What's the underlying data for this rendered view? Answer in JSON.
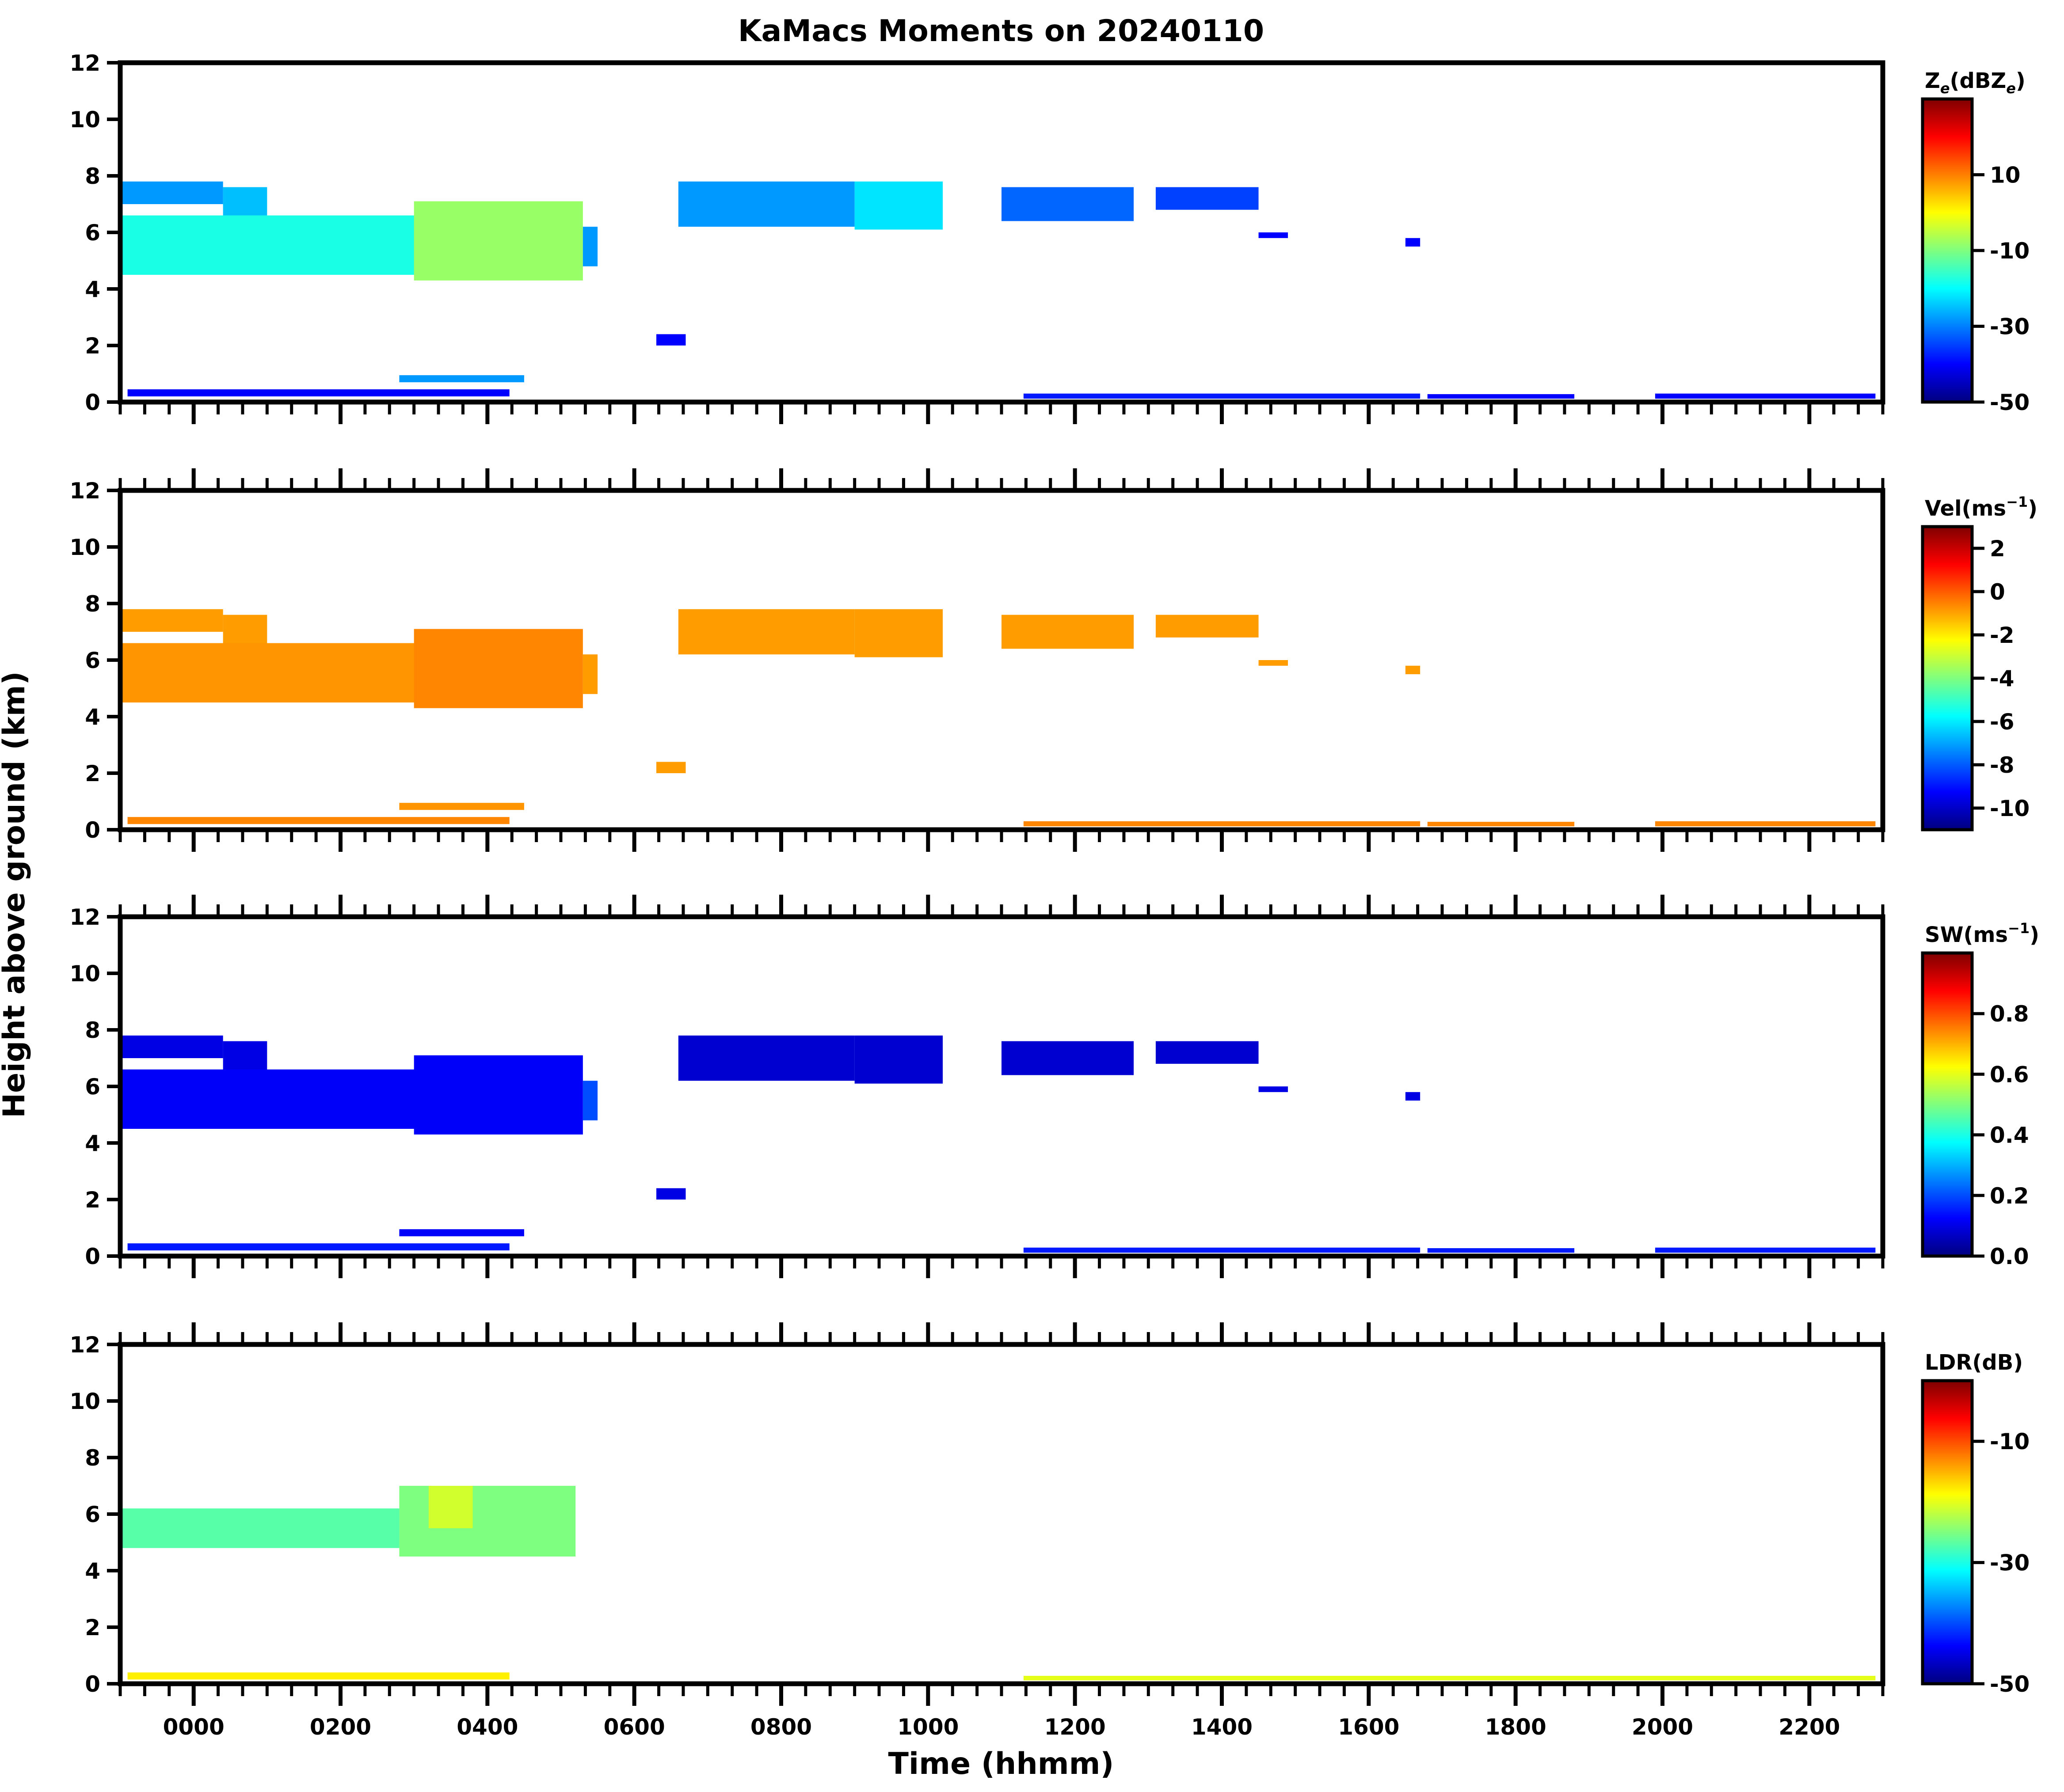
{
  "chart_data": {
    "type": "heatmap",
    "title": "KaMacs Moments on 20240110",
    "xlabel": "Time (hhmm)",
    "ylabel": "Height above ground (km)",
    "x_unit": "hours",
    "xlim": [
      -1.0,
      23.0
    ],
    "xticks": [
      0,
      2,
      4,
      6,
      8,
      10,
      12,
      14,
      16,
      18,
      20,
      22
    ],
    "xtick_labels": [
      "0000",
      "0200",
      "0400",
      "0600",
      "0800",
      "1000",
      "1200",
      "1400",
      "1600",
      "1800",
      "2000",
      "2200"
    ],
    "ylim": [
      0,
      12
    ],
    "yticks": [
      0,
      2,
      4,
      6,
      8,
      10,
      12
    ],
    "ytick_labels": [
      "0",
      "2",
      "4",
      "6",
      "8",
      "10",
      "12"
    ],
    "grid": false,
    "colormap": "jet",
    "colormap_stops": [
      "#00007f",
      "#0000ff",
      "#007fff",
      "#00ffff",
      "#7fff7f",
      "#ffff00",
      "#ff7f00",
      "#ff0000",
      "#7f0000"
    ],
    "panels": [
      {
        "name": "Z",
        "colorbar": {
          "label_main": "Z",
          "label_sub": "e",
          "label_rest": "(dBZ",
          "label_sub2": "e",
          "label_end": ")",
          "range": [
            -50,
            30
          ],
          "ticks": [
            10,
            -10,
            -30,
            -50
          ],
          "tick_labels": [
            "10",
            "-10",
            "-30",
            "-50"
          ]
        },
        "echoes": [
          {
            "t0": -1.0,
            "t1": 0.4,
            "hb": 7.0,
            "ht": 7.8,
            "v": -28
          },
          {
            "t0": 0.4,
            "t1": 1.0,
            "hb": 6.2,
            "ht": 7.6,
            "v": -25
          },
          {
            "t0": -1.0,
            "t1": 5.2,
            "hb": 4.5,
            "ht": 6.6,
            "v": -18
          },
          {
            "t0": 3.0,
            "t1": 5.3,
            "hb": 4.3,
            "ht": 7.1,
            "v": -8
          },
          {
            "t0": 5.3,
            "t1": 5.5,
            "hb": 4.8,
            "ht": 6.2,
            "v": -28
          },
          {
            "t0": 6.3,
            "t1": 6.7,
            "hb": 2.0,
            "ht": 2.4,
            "v": -40
          },
          {
            "t0": 6.6,
            "t1": 9.0,
            "hb": 6.2,
            "ht": 7.8,
            "v": -28
          },
          {
            "t0": 9.0,
            "t1": 10.2,
            "hb": 6.1,
            "ht": 7.8,
            "v": -22
          },
          {
            "t0": 11.0,
            "t1": 12.8,
            "hb": 6.4,
            "ht": 7.6,
            "v": -32
          },
          {
            "t0": 13.1,
            "t1": 14.5,
            "hb": 6.8,
            "ht": 7.6,
            "v": -35
          },
          {
            "t0": 14.5,
            "t1": 14.9,
            "hb": 5.8,
            "ht": 6.0,
            "v": -40
          },
          {
            "t0": 16.5,
            "t1": 16.7,
            "hb": 5.5,
            "ht": 5.8,
            "v": -40
          },
          {
            "t0": -0.9,
            "t1": 4.3,
            "hb": 0.2,
            "ht": 0.45,
            "v": -40
          },
          {
            "t0": 2.8,
            "t1": 4.5,
            "hb": 0.7,
            "ht": 0.95,
            "v": -28
          },
          {
            "t0": 11.3,
            "t1": 16.7,
            "hb": 0.12,
            "ht": 0.3,
            "v": -38
          },
          {
            "t0": 16.8,
            "t1": 18.8,
            "hb": 0.12,
            "ht": 0.28,
            "v": -40
          },
          {
            "t0": 19.9,
            "t1": 22.9,
            "hb": 0.12,
            "ht": 0.3,
            "v": -40
          }
        ]
      },
      {
        "name": "Vel",
        "colorbar": {
          "label_main": "Vel(ms",
          "label_sup": "−1",
          "label_end": ")",
          "range": [
            -11,
            3
          ],
          "ticks": [
            2,
            0,
            -2,
            -4,
            -6,
            -8,
            -10
          ],
          "tick_labels": [
            "2",
            "0",
            "-2",
            "-4",
            "-6",
            "-8",
            "-10"
          ]
        },
        "echoes": [
          {
            "t0": -1.0,
            "t1": 0.4,
            "hb": 7.0,
            "ht": 7.8,
            "v": -0.9
          },
          {
            "t0": 0.4,
            "t1": 1.0,
            "hb": 6.2,
            "ht": 7.6,
            "v": -0.9
          },
          {
            "t0": -1.0,
            "t1": 5.2,
            "hb": 4.5,
            "ht": 6.6,
            "v": -0.8
          },
          {
            "t0": 3.0,
            "t1": 5.3,
            "hb": 4.3,
            "ht": 7.1,
            "v": -0.6
          },
          {
            "t0": 5.3,
            "t1": 5.5,
            "hb": 4.8,
            "ht": 6.2,
            "v": -0.9
          },
          {
            "t0": 6.3,
            "t1": 6.7,
            "hb": 2.0,
            "ht": 2.4,
            "v": -0.9
          },
          {
            "t0": 6.6,
            "t1": 9.0,
            "hb": 6.2,
            "ht": 7.8,
            "v": -0.9
          },
          {
            "t0": 9.0,
            "t1": 10.2,
            "hb": 6.1,
            "ht": 7.8,
            "v": -0.9
          },
          {
            "t0": 11.0,
            "t1": 12.8,
            "hb": 6.4,
            "ht": 7.6,
            "v": -0.9
          },
          {
            "t0": 13.1,
            "t1": 14.5,
            "hb": 6.8,
            "ht": 7.6,
            "v": -0.9
          },
          {
            "t0": 14.5,
            "t1": 14.9,
            "hb": 5.8,
            "ht": 6.0,
            "v": -0.9
          },
          {
            "t0": 16.5,
            "t1": 16.7,
            "hb": 5.5,
            "ht": 5.8,
            "v": -0.9
          },
          {
            "t0": -0.9,
            "t1": 4.3,
            "hb": 0.2,
            "ht": 0.45,
            "v": -0.6
          },
          {
            "t0": 2.8,
            "t1": 4.5,
            "hb": 0.7,
            "ht": 0.95,
            "v": -0.8
          },
          {
            "t0": 11.3,
            "t1": 16.7,
            "hb": 0.12,
            "ht": 0.3,
            "v": -0.6
          },
          {
            "t0": 16.8,
            "t1": 18.8,
            "hb": 0.12,
            "ht": 0.28,
            "v": -0.6
          },
          {
            "t0": 19.9,
            "t1": 22.9,
            "hb": 0.12,
            "ht": 0.3,
            "v": -0.6
          }
        ]
      },
      {
        "name": "SW",
        "colorbar": {
          "label_main": "SW(ms",
          "label_sup": "−1",
          "label_end": ")",
          "range": [
            0.0,
            1.0
          ],
          "ticks": [
            0.8,
            0.6,
            0.4,
            0.2,
            0.0
          ],
          "tick_labels": [
            "0.8",
            "0.6",
            "0.4",
            "0.2",
            "0.0"
          ]
        },
        "echoes": [
          {
            "t0": -1.0,
            "t1": 0.4,
            "hb": 7.0,
            "ht": 7.8,
            "v": 0.1
          },
          {
            "t0": 0.4,
            "t1": 1.0,
            "hb": 6.2,
            "ht": 7.6,
            "v": 0.1
          },
          {
            "t0": -1.0,
            "t1": 5.2,
            "hb": 4.5,
            "ht": 6.6,
            "v": 0.12
          },
          {
            "t0": 3.0,
            "t1": 5.3,
            "hb": 4.3,
            "ht": 7.1,
            "v": 0.12
          },
          {
            "t0": 5.3,
            "t1": 5.5,
            "hb": 4.8,
            "ht": 6.2,
            "v": 0.2
          },
          {
            "t0": 6.3,
            "t1": 6.7,
            "hb": 2.0,
            "ht": 2.4,
            "v": 0.1
          },
          {
            "t0": 6.6,
            "t1": 9.0,
            "hb": 6.2,
            "ht": 7.8,
            "v": 0.08
          },
          {
            "t0": 9.0,
            "t1": 10.2,
            "hb": 6.1,
            "ht": 7.8,
            "v": 0.08
          },
          {
            "t0": 11.0,
            "t1": 12.8,
            "hb": 6.4,
            "ht": 7.6,
            "v": 0.08
          },
          {
            "t0": 13.1,
            "t1": 14.5,
            "hb": 6.8,
            "ht": 7.6,
            "v": 0.08
          },
          {
            "t0": 14.5,
            "t1": 14.9,
            "hb": 5.8,
            "ht": 6.0,
            "v": 0.1
          },
          {
            "t0": 16.5,
            "t1": 16.7,
            "hb": 5.5,
            "ht": 5.8,
            "v": 0.1
          },
          {
            "t0": -0.9,
            "t1": 4.3,
            "hb": 0.2,
            "ht": 0.45,
            "v": 0.15
          },
          {
            "t0": 2.8,
            "t1": 4.5,
            "hb": 0.7,
            "ht": 0.95,
            "v": 0.12
          },
          {
            "t0": 11.3,
            "t1": 16.7,
            "hb": 0.12,
            "ht": 0.3,
            "v": 0.15
          },
          {
            "t0": 16.8,
            "t1": 18.8,
            "hb": 0.12,
            "ht": 0.28,
            "v": 0.15
          },
          {
            "t0": 19.9,
            "t1": 22.9,
            "hb": 0.12,
            "ht": 0.3,
            "v": 0.15
          }
        ]
      },
      {
        "name": "LDR",
        "colorbar": {
          "label_main": "LDR(dB)",
          "range": [
            -50,
            0
          ],
          "ticks": [
            -10,
            -30,
            -50
          ],
          "tick_labels": [
            "-10",
            "-30",
            "-50"
          ]
        },
        "echoes": [
          {
            "t0": -1.0,
            "t1": 2.8,
            "hb": 4.8,
            "ht": 6.2,
            "v": -27
          },
          {
            "t0": 2.8,
            "t1": 5.2,
            "hb": 4.5,
            "ht": 7.0,
            "v": -25
          },
          {
            "t0": 3.2,
            "t1": 3.8,
            "hb": 5.5,
            "ht": 7.0,
            "v": -21
          },
          {
            "t0": -0.9,
            "t1": 4.3,
            "hb": 0.15,
            "ht": 0.4,
            "v": -18
          },
          {
            "t0": 11.3,
            "t1": 22.9,
            "hb": 0.12,
            "ht": 0.28,
            "v": -20
          }
        ]
      }
    ]
  }
}
